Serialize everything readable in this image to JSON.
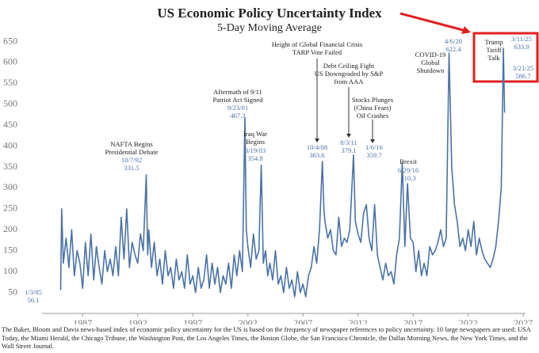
{
  "chart_data": {
    "type": "line",
    "title": "US Economic Policy Uncertainty Index",
    "subtitle": "5-Day Moving Average",
    "color": "#4a72a8",
    "x": [
      1985.0,
      1985.1,
      1985.25,
      1985.5,
      1985.75,
      1986,
      1986.25,
      1986.5,
      1986.75,
      1987,
      1987.25,
      1987.5,
      1987.75,
      1988,
      1988.25,
      1988.5,
      1988.75,
      1989,
      1989.25,
      1989.5,
      1989.75,
      1990,
      1990.25,
      1990.5,
      1990.75,
      1991,
      1991.25,
      1991.5,
      1991.75,
      1992,
      1992.25,
      1992.5,
      1992.77,
      1992.9,
      1993,
      1993.25,
      1993.5,
      1993.75,
      1994,
      1994.25,
      1994.5,
      1994.75,
      1995,
      1995.25,
      1995.5,
      1995.75,
      1996,
      1996.25,
      1996.5,
      1996.75,
      1997,
      1997.25,
      1997.5,
      1997.75,
      1998,
      1998.25,
      1998.5,
      1998.75,
      1999,
      1999.25,
      1999.5,
      1999.75,
      2000,
      2000.25,
      2000.5,
      2000.75,
      2001,
      2001.25,
      2001.5,
      2001.73,
      2001.85,
      2002,
      2002.25,
      2002.5,
      2002.75,
      2003,
      2003.21,
      2003.4,
      2003.6,
      2003.8,
      2004,
      2004.25,
      2004.5,
      2004.75,
      2005,
      2005.25,
      2005.5,
      2005.75,
      2006,
      2006.25,
      2006.5,
      2006.75,
      2007,
      2007.25,
      2007.5,
      2007.75,
      2008,
      2008.25,
      2008.5,
      2008.76,
      2008.9,
      2009,
      2009.25,
      2009.5,
      2009.75,
      2010,
      2010.25,
      2010.5,
      2010.75,
      2011,
      2011.25,
      2011.59,
      2011.75,
      2012,
      2012.25,
      2012.5,
      2012.75,
      2013,
      2013.25,
      2013.5,
      2013.75,
      2014,
      2014.25,
      2014.5,
      2014.75,
      2015,
      2015.25,
      2015.5,
      2015.75,
      2016.01,
      2016.25,
      2016.49,
      2016.75,
      2017,
      2017.25,
      2017.5,
      2017.75,
      2018,
      2018.25,
      2018.5,
      2018.75,
      2019,
      2019.25,
      2019.5,
      2019.75,
      2020,
      2020.26,
      2020.5,
      2020.75,
      2021,
      2021.25,
      2021.5,
      2021.75,
      2022,
      2022.25,
      2022.5,
      2022.75,
      2023,
      2023.25,
      2023.5,
      2023.75,
      2024,
      2024.25,
      2024.5,
      2024.75,
      2025,
      2025.19,
      2025.22,
      2025.3
    ],
    "values": [
      56.1,
      250,
      120,
      180,
      110,
      200,
      90,
      150,
      120,
      60,
      170,
      90,
      190,
      80,
      160,
      110,
      70,
      150,
      100,
      130,
      90,
      160,
      90,
      230,
      130,
      250,
      110,
      170,
      140,
      120,
      190,
      150,
      331.5,
      140,
      200,
      110,
      170,
      90,
      130,
      70,
      150,
      90,
      110,
      60,
      130,
      80,
      100,
      60,
      140,
      70,
      90,
      50,
      110,
      60,
      80,
      140,
      60,
      120,
      70,
      110,
      50,
      90,
      70,
      120,
      60,
      140,
      90,
      150,
      100,
      467.3,
      200,
      160,
      110,
      190,
      130,
      150,
      354.8,
      120,
      150,
      90,
      120,
      80,
      150,
      70,
      90,
      50,
      110,
      60,
      80,
      40,
      100,
      50,
      70,
      40,
      90,
      110,
      160,
      120,
      200,
      363.6,
      250,
      220,
      180,
      200,
      150,
      140,
      230,
      160,
      180,
      170,
      200,
      379.1,
      220,
      190,
      170,
      240,
      260,
      180,
      150,
      260,
      140,
      110,
      80,
      120,
      90,
      100,
      70,
      140,
      180,
      359.7,
      160,
      310.3,
      180,
      170,
      100,
      150,
      90,
      120,
      90,
      160,
      140,
      150,
      170,
      200,
      160,
      180,
      622.4,
      350,
      260,
      220,
      160,
      180,
      150,
      200,
      160,
      220,
      140,
      180,
      150,
      130,
      120,
      110,
      130,
      160,
      220,
      300,
      633.9,
      586.7,
      480
    ],
    "xlim": [
      1983.6,
      2027.2
    ],
    "xticks": [
      1987,
      1992,
      1997,
      2002,
      2007,
      2012,
      2017,
      2022,
      2027
    ],
    "ylim": [
      0,
      680
    ],
    "yticks": [
      50,
      100,
      150,
      200,
      250,
      300,
      350,
      400,
      450,
      500,
      550,
      600,
      650
    ],
    "grid": false,
    "annotations": [
      {
        "lines": [
          "NAFTA Begins",
          "Presidential Debate"
        ],
        "points": [
          {
            "date": "10/7/92",
            "value": 331.5
          }
        ]
      },
      {
        "lines": [
          "Aftermath of 9/11",
          "Patriot Act Signed"
        ],
        "points": [
          {
            "date": "9/23/01",
            "value": 467.3
          }
        ]
      },
      {
        "lines": [
          "Iraq War",
          "Begins"
        ],
        "points": [
          {
            "date": "3/19/03",
            "value": 354.8
          }
        ]
      },
      {
        "lines": [
          "Height of Global Financial Crisis",
          "TARP Vote Failed"
        ],
        "points": [
          {
            "date": "10/4/08",
            "value": 363.6
          }
        ]
      },
      {
        "lines": [
          "Debt Ceiling Fight",
          "US Downgraded by S&P",
          "from AAA"
        ],
        "points": [
          {
            "date": "8/3/11",
            "value": 379.1
          }
        ]
      },
      {
        "lines": [
          "Stocks Plunges",
          "(China Fears)",
          "Oil Crashes"
        ],
        "points": [
          {
            "date": "1/6/16",
            "value": 359.7
          }
        ]
      },
      {
        "lines": [
          "Brexit"
        ],
        "points": [
          {
            "date": "6/29/16",
            "value": 310.3
          }
        ]
      },
      {
        "lines": [
          "COVID-19",
          "Global",
          "Shutdown"
        ],
        "points": [
          {
            "date": "4/6/20",
            "value": 622.4
          }
        ]
      },
      {
        "lines": [
          "Trump",
          "Tariff",
          "Talk"
        ],
        "points": [
          {
            "date": "3/11/25",
            "value": 633.9
          },
          {
            "date": "3/21/25",
            "value": 586.7
          }
        ]
      },
      {
        "lines": [],
        "points": [
          {
            "date": "1/3/85",
            "value": 56.1
          }
        ]
      }
    ],
    "footnote": "The Baker, Bloom and Davis news-based index of economic policy uncertainty for the US is based on the frequency of newspaper references to policy uncertainty. 10 large newspapers are used: USA Today, the Miami Herald, the Chicago Tribune, the Washington Post, the Los Angeles Times, the Boston Globe, the San Francisco Chronicle, the Dallas Morning News, the New York Times, and the Wall Street Journal."
  }
}
